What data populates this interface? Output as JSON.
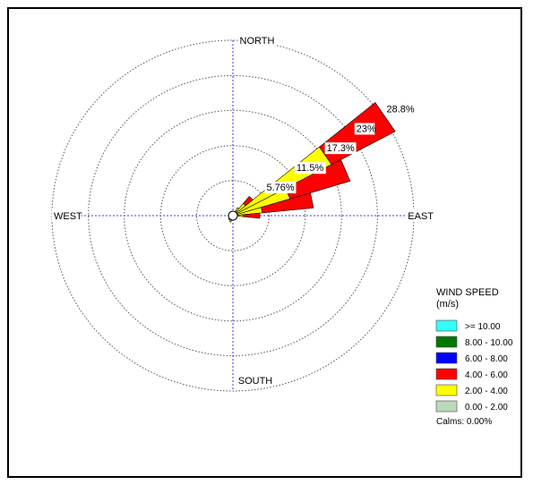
{
  "chart_data": {
    "type": "windrose",
    "directions": {
      "north": "NORTH",
      "south": "SOUTH",
      "east": "EAST",
      "west": "WEST"
    },
    "ring_labels": [
      "5.76%",
      "11.5%",
      "17.3%",
      "23%",
      "28.8%"
    ],
    "ring_values": [
      5.76,
      11.5,
      17.3,
      23,
      28.8
    ],
    "legend": {
      "title": "WIND SPEED",
      "unit": "(m/s)",
      "calms": "Calms: 0.00%",
      "bins": [
        {
          "label": ">= 10.00",
          "color": "#33ffff"
        },
        {
          "label": "8.00 - 10.00",
          "color": "#007700"
        },
        {
          "label": "6.00 - 8.00",
          "color": "#0000ff"
        },
        {
          "label": "4.00 - 6.00",
          "color": "#ff0000"
        },
        {
          "label": "2.00 - 4.00",
          "color": "#ffff00"
        },
        {
          "label": "0.00 - 2.00",
          "color": "#bbd9bb"
        }
      ]
    },
    "sectors": [
      {
        "direction_deg": 56.25,
        "segments": [
          {
            "bin": "0.00 - 2.00",
            "pct": 0.3
          },
          {
            "bin": "2.00 - 4.00",
            "pct": 17.5
          },
          {
            "bin": "4.00 - 6.00",
            "pct": 11.5
          }
        ]
      },
      {
        "direction_deg": 67.5,
        "segments": [
          {
            "bin": "0.00 - 2.00",
            "pct": 0.3
          },
          {
            "bin": "2.00 - 4.00",
            "pct": 9.2
          },
          {
            "bin": "4.00 - 6.00",
            "pct": 10.0
          }
        ]
      },
      {
        "direction_deg": 78.75,
        "segments": [
          {
            "bin": "0.00 - 2.00",
            "pct": 0.3
          },
          {
            "bin": "2.00 - 4.00",
            "pct": 4.4
          },
          {
            "bin": "4.00 - 6.00",
            "pct": 8.2
          }
        ]
      },
      {
        "direction_deg": 90,
        "segments": [
          {
            "bin": "0.00 - 2.00",
            "pct": 0.3
          },
          {
            "bin": "2.00 - 4.00",
            "pct": 1.3
          },
          {
            "bin": "4.00 - 6.00",
            "pct": 2.7
          }
        ]
      },
      {
        "direction_deg": 45,
        "segments": [
          {
            "bin": "0.00 - 2.00",
            "pct": 0.3
          },
          {
            "bin": "2.00 - 4.00",
            "pct": 2.3
          },
          {
            "bin": "4.00 - 6.00",
            "pct": 1.5
          }
        ]
      },
      {
        "direction_deg": 33.75,
        "segments": [
          {
            "bin": "0.00 - 2.00",
            "pct": 0.3
          },
          {
            "bin": "2.00 - 4.00",
            "pct": 1.2
          }
        ]
      },
      {
        "direction_deg": 202.5,
        "segments": [
          {
            "bin": "0.00 - 2.00",
            "pct": 0.3
          },
          {
            "bin": "2.00 - 4.00",
            "pct": 0.8
          }
        ]
      },
      {
        "direction_deg": 225,
        "segments": [
          {
            "bin": "0.00 - 2.00",
            "pct": 0.3
          },
          {
            "bin": "2.00 - 4.00",
            "pct": 0.6
          }
        ]
      }
    ]
  }
}
